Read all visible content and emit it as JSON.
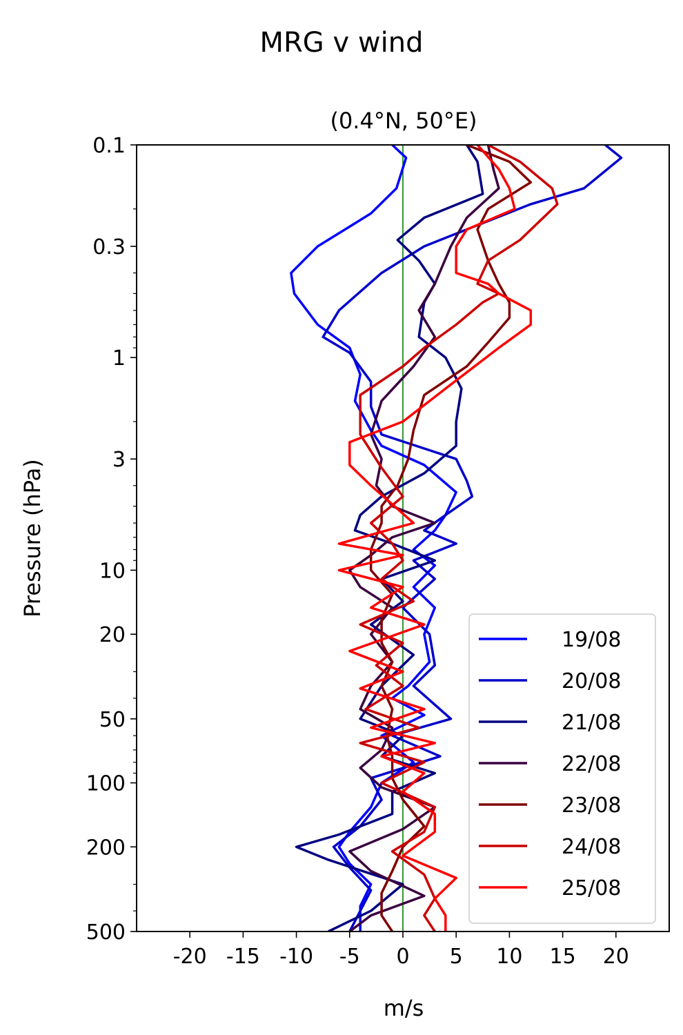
{
  "figure": {
    "suptitle": "MRG v wind"
  },
  "chart_data": {
    "type": "line",
    "title": "(0.4°N, 50°E)",
    "xlabel": "m/s",
    "ylabel": "Pressure (hPa)",
    "xlim": [
      -25,
      25
    ],
    "ylim": [
      500,
      0.1
    ],
    "y_scale": "log",
    "y_inverted": true,
    "x_ticks": [
      -20,
      -15,
      -10,
      -5,
      0,
      5,
      10,
      15,
      20
    ],
    "x_tick_labels": [
      "-20",
      "-15",
      "-10",
      "-5",
      "0",
      "5",
      "10",
      "15",
      "20"
    ],
    "y_ticks": [
      0.1,
      0.3,
      1,
      3,
      10,
      20,
      50,
      100,
      200,
      500
    ],
    "y_tick_labels": [
      "0.1",
      "0.3",
      "1",
      "3",
      "10",
      "20",
      "50",
      "100",
      "200",
      "500"
    ],
    "zero_line_color": "#008000",
    "grid": false,
    "legend_position": "lower right",
    "series": [
      {
        "name": "19/08",
        "color": "#0000ff",
        "points": [
          [
            -1,
            0.1
          ],
          [
            0.3,
            0.115
          ],
          [
            -0.6,
            0.16
          ],
          [
            -3,
            0.21
          ],
          [
            -8,
            0.3
          ],
          [
            -10.5,
            0.4
          ],
          [
            -10.2,
            0.5
          ],
          [
            -8,
            0.7
          ],
          [
            -5,
            0.9
          ],
          [
            -4,
            1.2
          ],
          [
            -4.5,
            1.6
          ],
          [
            -3,
            2.2
          ],
          [
            -2,
            2.6
          ],
          [
            2,
            3.2
          ],
          [
            5,
            4.3
          ],
          [
            4,
            5.5
          ],
          [
            3,
            6.5
          ],
          [
            1,
            8
          ],
          [
            3,
            9.5
          ],
          [
            1,
            12
          ],
          [
            3,
            15
          ],
          [
            2,
            20
          ],
          [
            2.5,
            27
          ],
          [
            0.5,
            35
          ],
          [
            -1,
            40
          ],
          [
            2,
            48
          ],
          [
            -2,
            60
          ],
          [
            1,
            80
          ],
          [
            -2,
            100
          ],
          [
            -3,
            130
          ],
          [
            -5,
            170
          ],
          [
            -6,
            200
          ],
          [
            -5,
            240
          ],
          [
            -3,
            300
          ],
          [
            -4,
            380
          ],
          [
            -4,
            500
          ]
        ]
      },
      {
        "name": "20/08",
        "color": "#0000cc",
        "points": [
          [
            19,
            0.1
          ],
          [
            20.5,
            0.115
          ],
          [
            17,
            0.16
          ],
          [
            12,
            0.19
          ],
          [
            2,
            0.3
          ],
          [
            -2,
            0.4
          ],
          [
            -6,
            0.6
          ],
          [
            -7.5,
            0.8
          ],
          [
            -5,
            0.95
          ],
          [
            -3,
            1.3
          ],
          [
            -3,
            1.7
          ],
          [
            -2,
            2.3
          ],
          [
            5,
            3
          ],
          [
            6,
            3.8
          ],
          [
            6.5,
            4.5
          ],
          [
            4,
            5.5
          ],
          [
            2,
            6.5
          ],
          [
            5,
            7.5
          ],
          [
            1,
            9
          ],
          [
            3,
            11
          ],
          [
            0,
            15
          ],
          [
            2.5,
            20
          ],
          [
            3,
            28
          ],
          [
            1,
            35
          ],
          [
            4.5,
            50
          ],
          [
            -1,
            60
          ],
          [
            3.5,
            75
          ],
          [
            -3,
            95
          ],
          [
            -2,
            120
          ],
          [
            -4,
            160
          ],
          [
            -6.5,
            200
          ],
          [
            -5,
            250
          ],
          [
            -3,
            320
          ],
          [
            -4,
            400
          ],
          [
            -5,
            500
          ]
        ]
      },
      {
        "name": "21/08",
        "color": "#000080",
        "points": [
          [
            6,
            0.1
          ],
          [
            7,
            0.12
          ],
          [
            7.5,
            0.17
          ],
          [
            2,
            0.22
          ],
          [
            -0.5,
            0.28
          ],
          [
            1.5,
            0.35
          ],
          [
            3,
            0.45
          ],
          [
            2,
            0.55
          ],
          [
            1.5,
            0.8
          ],
          [
            4,
            1.0
          ],
          [
            5.5,
            1.4
          ],
          [
            5,
            2.0
          ],
          [
            5,
            2.6
          ],
          [
            2,
            3.5
          ],
          [
            -2,
            4.5
          ],
          [
            -4,
            5.5
          ],
          [
            -4.5,
            6.5
          ],
          [
            -1,
            7.5
          ],
          [
            3,
            9
          ],
          [
            -2,
            11
          ],
          [
            0,
            14
          ],
          [
            -3,
            18
          ],
          [
            1,
            25
          ],
          [
            -2,
            35
          ],
          [
            -4,
            50
          ],
          [
            0,
            60
          ],
          [
            -2,
            75
          ],
          [
            3,
            90
          ],
          [
            -1,
            110
          ],
          [
            -1,
            140
          ],
          [
            -6,
            175
          ],
          [
            -10,
            200
          ],
          [
            -7,
            230
          ],
          [
            0,
            300
          ],
          [
            -3,
            400
          ],
          [
            -7,
            500
          ]
        ]
      },
      {
        "name": "22/08",
        "color": "#3a0040",
        "points": [
          [
            8,
            0.1
          ],
          [
            8.5,
            0.13
          ],
          [
            9,
            0.16
          ],
          [
            6,
            0.22
          ],
          [
            4.5,
            0.3
          ],
          [
            3,
            0.45
          ],
          [
            1.5,
            0.6
          ],
          [
            3,
            0.8
          ],
          [
            1,
            1.1
          ],
          [
            -2,
            1.6
          ],
          [
            -3,
            2.3
          ],
          [
            -2,
            3
          ],
          [
            -2.5,
            4
          ],
          [
            -1,
            5
          ],
          [
            3,
            6
          ],
          [
            -1,
            7
          ],
          [
            -3,
            8.5
          ],
          [
            -5,
            10
          ],
          [
            -4,
            12
          ],
          [
            -1,
            15
          ],
          [
            -3,
            20
          ],
          [
            -1,
            27
          ],
          [
            -3,
            35
          ],
          [
            -4,
            45
          ],
          [
            -1,
            55
          ],
          [
            -2,
            70
          ],
          [
            -4,
            85
          ],
          [
            -2,
            105
          ],
          [
            3,
            130
          ],
          [
            0,
            165
          ],
          [
            -5,
            210
          ],
          [
            -3,
            260
          ],
          [
            2,
            340
          ],
          [
            -3,
            420
          ],
          [
            -5,
            500
          ]
        ]
      },
      {
        "name": "23/08",
        "color": "#800000",
        "points": [
          [
            6,
            0.1
          ],
          [
            10,
            0.12
          ],
          [
            12,
            0.15
          ],
          [
            8,
            0.2
          ],
          [
            7,
            0.25
          ],
          [
            8,
            0.35
          ],
          [
            9,
            0.45
          ],
          [
            10,
            0.55
          ],
          [
            10,
            0.65
          ],
          [
            8,
            0.85
          ],
          [
            6,
            1.1
          ],
          [
            2,
            1.5
          ],
          [
            1,
            2.2
          ],
          [
            0.5,
            3
          ],
          [
            -0.5,
            4
          ],
          [
            -2,
            5
          ],
          [
            -2,
            6
          ],
          [
            -3,
            8
          ],
          [
            -3,
            10
          ],
          [
            -1,
            13
          ],
          [
            -2,
            17
          ],
          [
            -2,
            22
          ],
          [
            -1,
            27
          ],
          [
            -2,
            35
          ],
          [
            -1,
            45
          ],
          [
            -1.5,
            60
          ],
          [
            -1,
            75
          ],
          [
            -1,
            95
          ],
          [
            0,
            120
          ],
          [
            2,
            160
          ],
          [
            0,
            200
          ],
          [
            -1,
            260
          ],
          [
            -2,
            330
          ],
          [
            -2,
            420
          ],
          [
            -1,
            500
          ]
        ]
      },
      {
        "name": "24/08",
        "color": "#cc0000",
        "points": [
          [
            8,
            0.1
          ],
          [
            11,
            0.12
          ],
          [
            14,
            0.16
          ],
          [
            14.5,
            0.19
          ],
          [
            11,
            0.28
          ],
          [
            8,
            0.35
          ],
          [
            7,
            0.45
          ],
          [
            9,
            0.5
          ],
          [
            7.5,
            0.55
          ],
          [
            5,
            0.7
          ],
          [
            2,
            0.9
          ],
          [
            0,
            1.1
          ],
          [
            -4,
            1.5
          ],
          [
            -4,
            2.3
          ],
          [
            -2,
            3.3
          ],
          [
            0,
            4.5
          ],
          [
            -3,
            6
          ],
          [
            -1,
            7.5
          ],
          [
            0,
            9
          ],
          [
            -2,
            11
          ],
          [
            1,
            14
          ],
          [
            -4,
            18
          ],
          [
            0,
            22
          ],
          [
            -2.5,
            28
          ],
          [
            0,
            35
          ],
          [
            -3.5,
            45
          ],
          [
            1.5,
            55
          ],
          [
            -4,
            65
          ],
          [
            2,
            80
          ],
          [
            -2,
            100
          ],
          [
            3,
            130
          ],
          [
            2,
            170
          ],
          [
            -1,
            210
          ],
          [
            2,
            270
          ],
          [
            3,
            350
          ],
          [
            2,
            420
          ],
          [
            3,
            500
          ]
        ]
      },
      {
        "name": "25/08",
        "color": "#ff0000",
        "points": [
          [
            7,
            0.1
          ],
          [
            9,
            0.13
          ],
          [
            10,
            0.16
          ],
          [
            10.5,
            0.2
          ],
          [
            6,
            0.25
          ],
          [
            5,
            0.3
          ],
          [
            5,
            0.4
          ],
          [
            8,
            0.45
          ],
          [
            9,
            0.5
          ],
          [
            12,
            0.6
          ],
          [
            12,
            0.7
          ],
          [
            9,
            0.9
          ],
          [
            4,
            1.4
          ],
          [
            0,
            2.0
          ],
          [
            -5,
            2.5
          ],
          [
            -5,
            3.2
          ],
          [
            -3,
            4
          ],
          [
            1,
            6
          ],
          [
            -6,
            7.5
          ],
          [
            0,
            8.5
          ],
          [
            -6,
            10
          ],
          [
            0,
            12
          ],
          [
            -3,
            15
          ],
          [
            2,
            18
          ],
          [
            -5,
            24
          ],
          [
            0,
            30
          ],
          [
            -4,
            36
          ],
          [
            2,
            45
          ],
          [
            -3,
            55
          ],
          [
            3,
            65
          ],
          [
            -2,
            75
          ],
          [
            2,
            90
          ],
          [
            0,
            110
          ],
          [
            3,
            140
          ],
          [
            3,
            170
          ],
          [
            0,
            220
          ],
          [
            5,
            280
          ],
          [
            3,
            350
          ],
          [
            4,
            420
          ],
          [
            4,
            500
          ]
        ]
      }
    ]
  }
}
